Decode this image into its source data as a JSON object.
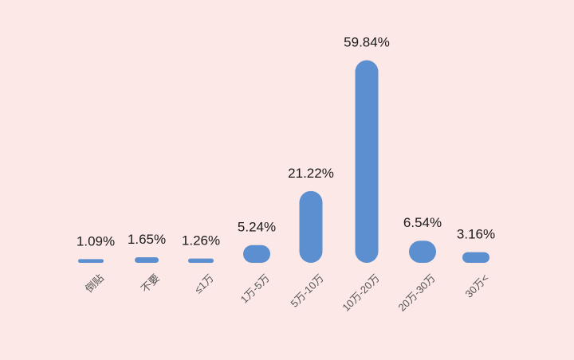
{
  "chart_data": {
    "type": "bar",
    "categories": [
      "倒贴",
      "不要",
      "≤1万",
      "1万-5万",
      "5万-10万",
      "10万-20万",
      "20万-30万",
      "30万<"
    ],
    "values": [
      1.09,
      1.65,
      1.26,
      5.24,
      21.22,
      59.84,
      6.54,
      3.16
    ],
    "data_labels": [
      "1.09%",
      "1.65%",
      "1.26%",
      "5.24%",
      "21.22%",
      "59.84%",
      "6.54%",
      "3.16%"
    ],
    "ylim": [
      0,
      60
    ],
    "grid": false,
    "legend": "none",
    "colors": {
      "bar": "#5b8fd0",
      "background": "#fce8e6"
    }
  }
}
